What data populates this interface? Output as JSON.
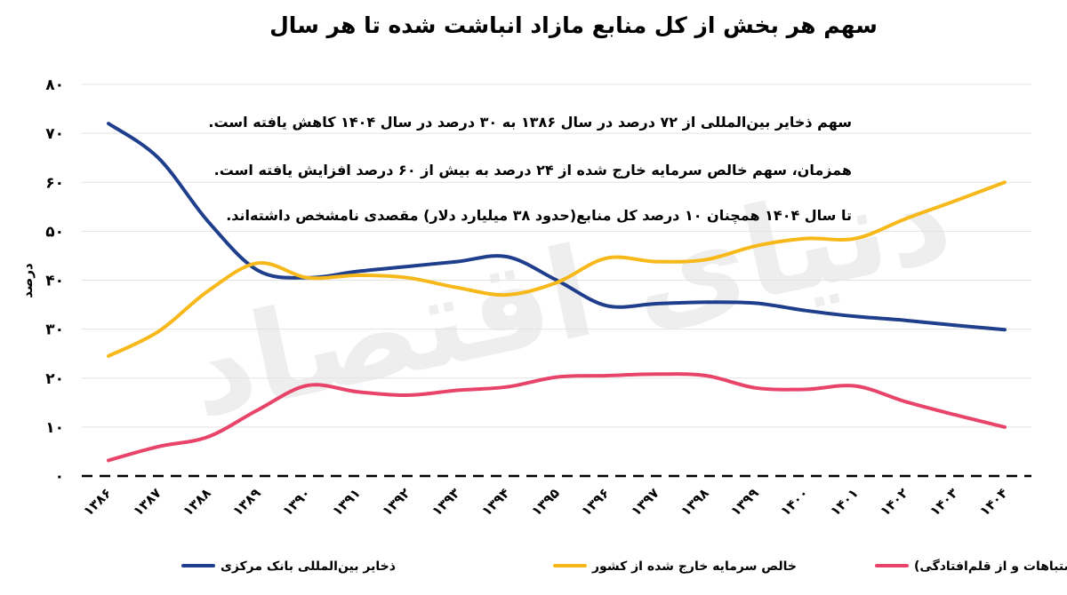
{
  "chart_data": {
    "type": "line",
    "title": "سهم هر بخش از کل منابع مازاد انباشت شده تا هر سال",
    "ylabel": "درصد",
    "xlabel": "",
    "ylim": [
      0,
      80
    ],
    "yticks": [
      "۰",
      "۱۰",
      "۲۰",
      "۳۰",
      "۴۰",
      "۵۰",
      "۶۰",
      "۷۰",
      "۸۰"
    ],
    "categories": [
      "۱۳۸۶",
      "۱۳۸۷",
      "۱۳۸۸",
      "۱۳۸۹",
      "۱۳۹۰",
      "۱۳۹۱",
      "۱۳۹۲",
      "۱۳۹۳",
      "۱۳۹۴",
      "۱۳۹۵",
      "۱۳۹۶",
      "۱۳۹۷",
      "۱۳۹۸",
      "۱۳۹۹",
      "۱۴۰۰",
      "۱۴۰۱",
      "۱۴۰۲",
      "۱۴۰۳",
      "۱۴۰۴"
    ],
    "grid": true,
    "legend_position": "bottom",
    "series": [
      {
        "name": "ذخایر بین‌المللی بانک مرکزی",
        "color": "#1f3f8c",
        "values": [
          72,
          65,
          52,
          42,
          40.5,
          41.8,
          42.8,
          43.8,
          44.8,
          40,
          34.8,
          35.2,
          35.5,
          35.3,
          33.8,
          32.6,
          31.8,
          30.8,
          29.9
        ]
      },
      {
        "name": "خالص سرمایه خارج شده از کشور",
        "color": "#f7b81a",
        "values": [
          24.5,
          29.5,
          37.8,
          43.5,
          40.5,
          41,
          40.5,
          38.5,
          37,
          39.5,
          44.5,
          43.8,
          44.2,
          47,
          48.5,
          48.5,
          52.5,
          56.2,
          60
        ]
      },
      {
        "name": "مقصد نامشخص(اشتباهات و از قلم‌افتادگی)",
        "color": "#e8446a",
        "values": [
          3.2,
          6,
          8,
          13.5,
          18.5,
          17.2,
          16.5,
          17.5,
          18.2,
          20.2,
          20.5,
          20.8,
          20.5,
          18,
          17.7,
          18.4,
          15.2,
          12.5,
          10
        ]
      }
    ],
    "annotations": [
      "سهم ذخایر بین‌المللی از ۷۲ درصد در سال ۱۳۸۶ به ۳۰ درصد در سال ۱۴۰۴ کاهش یافته است.",
      "همزمان، سهم خالص سرمایه خارج شده  از ۲۴ درصد به بیش از ۶۰ درصد افزایش یافته است.",
      "تا سال ۱۴۰۴ همچنان ۱۰ درصد کل منابع(حدود ۳۸ میلیارد دلار) مقصدی نامشخص داشته‌اند."
    ]
  },
  "watermark": "دنیای اقتصاد"
}
